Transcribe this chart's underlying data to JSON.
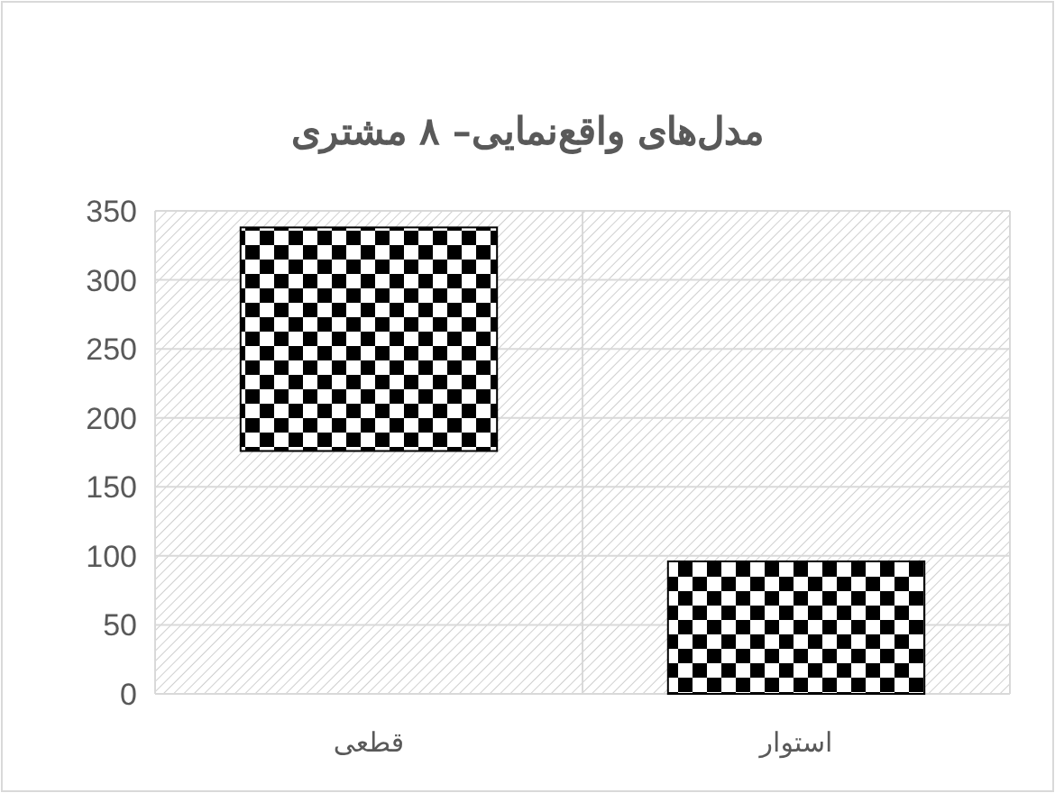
{
  "chart_data": {
    "type": "bar",
    "title": "مدل‌های واقع‌نمایی– ۸ مشتری",
    "categories": [
      "قطعی",
      "استوار"
    ],
    "values": [
      162,
      96
    ],
    "base": [
      176,
      0
    ],
    "color": "#000000",
    "ylim": [
      0,
      350
    ],
    "yticks": [
      0,
      50,
      100,
      150,
      200,
      250,
      300,
      350
    ],
    "grid": true
  }
}
